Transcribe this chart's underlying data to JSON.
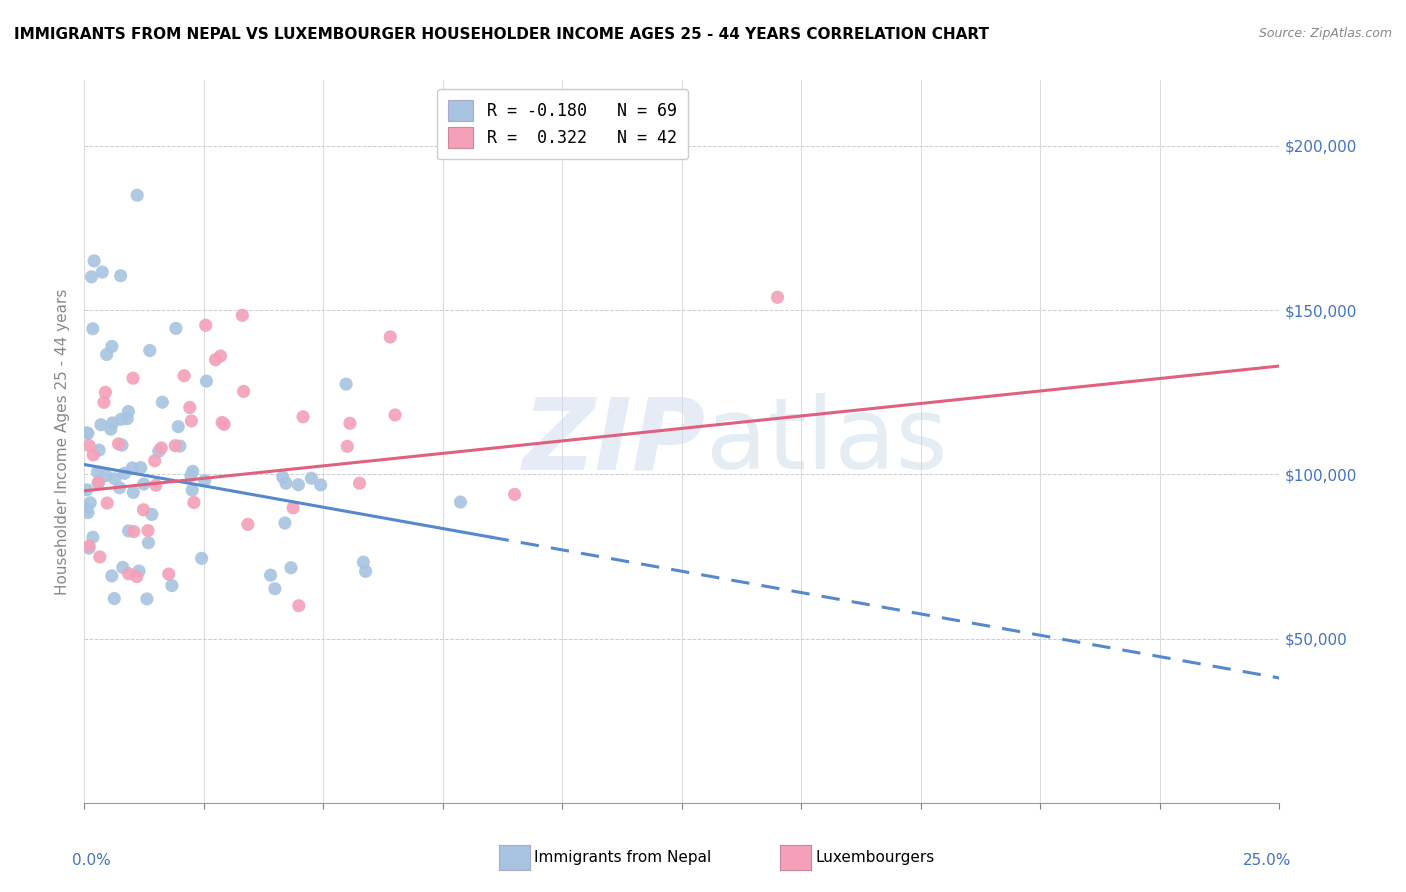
{
  "title": "IMMIGRANTS FROM NEPAL VS LUXEMBOURGER HOUSEHOLDER INCOME AGES 25 - 44 YEARS CORRELATION CHART",
  "source": "Source: ZipAtlas.com",
  "ylabel": "Householder Income Ages 25 - 44 years",
  "xlim": [
    0.0,
    25.0
  ],
  "ylim": [
    0,
    220000
  ],
  "legend1_label": "R = -0.180   N = 69",
  "legend2_label": "R =  0.322   N = 42",
  "nepal_color": "#a8c4e0",
  "lux_color": "#f4a0b8",
  "nepal_line_color": "#5588cc",
  "lux_line_color": "#e06080",
  "axis_label_color": "#4472c4",
  "nepal_seed": 10,
  "lux_seed": 20,
  "nepal_trend_x0": 0.0,
  "nepal_trend_x1": 25.0,
  "nepal_trend_y0": 103000,
  "nepal_trend_y1": 38000,
  "nepal_solid_end_x": 8.5,
  "lux_trend_x0": 0.0,
  "lux_trend_x1": 25.0,
  "lux_trend_y0": 95000,
  "lux_trend_y1": 133000
}
